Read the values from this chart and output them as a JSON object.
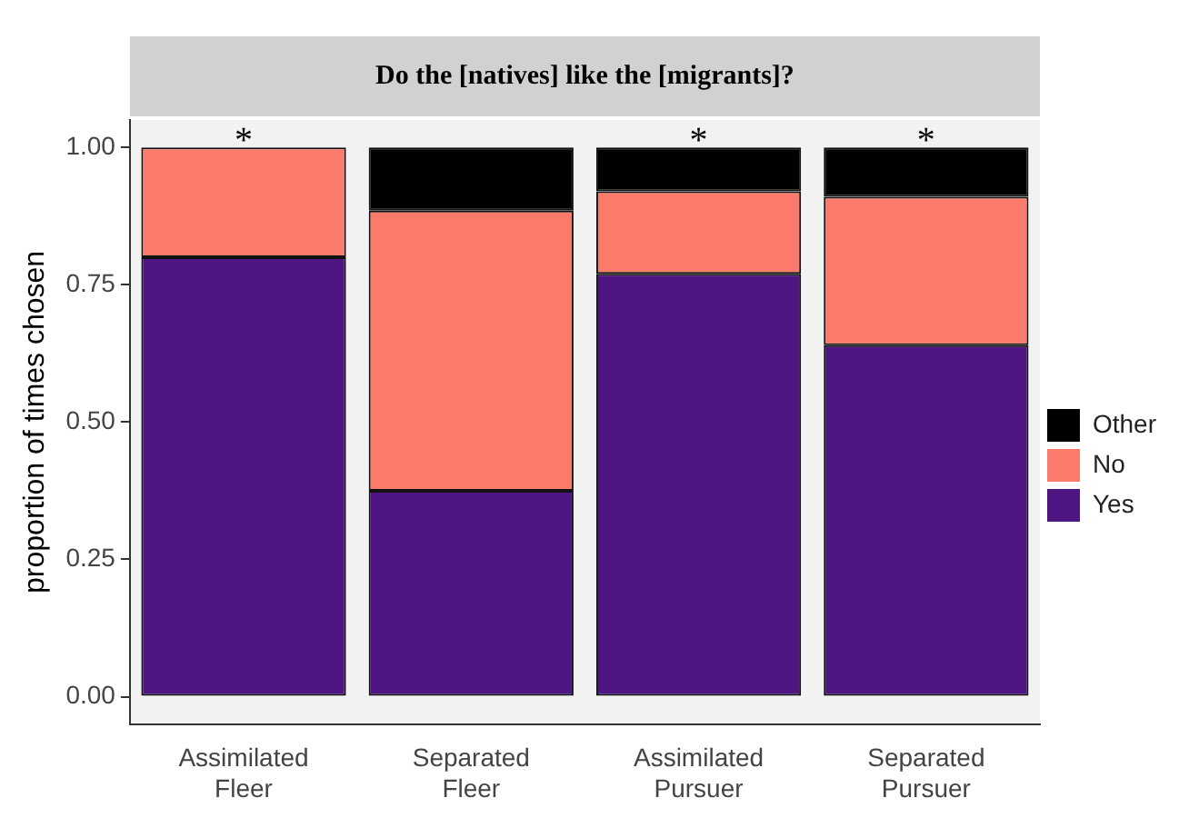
{
  "chart_data": {
    "type": "bar",
    "title": "Do the [natives] like the [migrants]?",
    "ylabel": "proportion of times chosen",
    "categories": [
      "Assimilated Fleer",
      "Separated Fleer",
      "Assimilated Pursuer",
      "Separated Pursuer"
    ],
    "stacked": true,
    "series": [
      {
        "name": "Yes",
        "color": "#4f1582",
        "values": [
          0.8,
          0.375,
          0.77,
          0.64
        ]
      },
      {
        "name": "No",
        "color": "#fa7a6c",
        "values": [
          0.2,
          0.51,
          0.15,
          0.27
        ]
      },
      {
        "name": "Other",
        "color": "#000000",
        "values": [
          0,
          0.115,
          0.08,
          0.09
        ]
      }
    ],
    "ylim": [
      -0.05,
      1.05
    ],
    "yticks": [
      {
        "value": 0,
        "label": "0.00"
      },
      {
        "value": 0.25,
        "label": "0.25"
      },
      {
        "value": 0.5,
        "label": "0.50"
      },
      {
        "value": 0.75,
        "label": "0.75"
      },
      {
        "value": 1,
        "label": "1.00"
      }
    ],
    "annotations": [
      {
        "text": "*",
        "x": "Assimilated Fleer"
      },
      {
        "text": "*",
        "x": "Assimilated Pursuer"
      },
      {
        "text": "*",
        "x": "Separated Pursuer"
      }
    ],
    "grid": false,
    "legend": "right"
  }
}
